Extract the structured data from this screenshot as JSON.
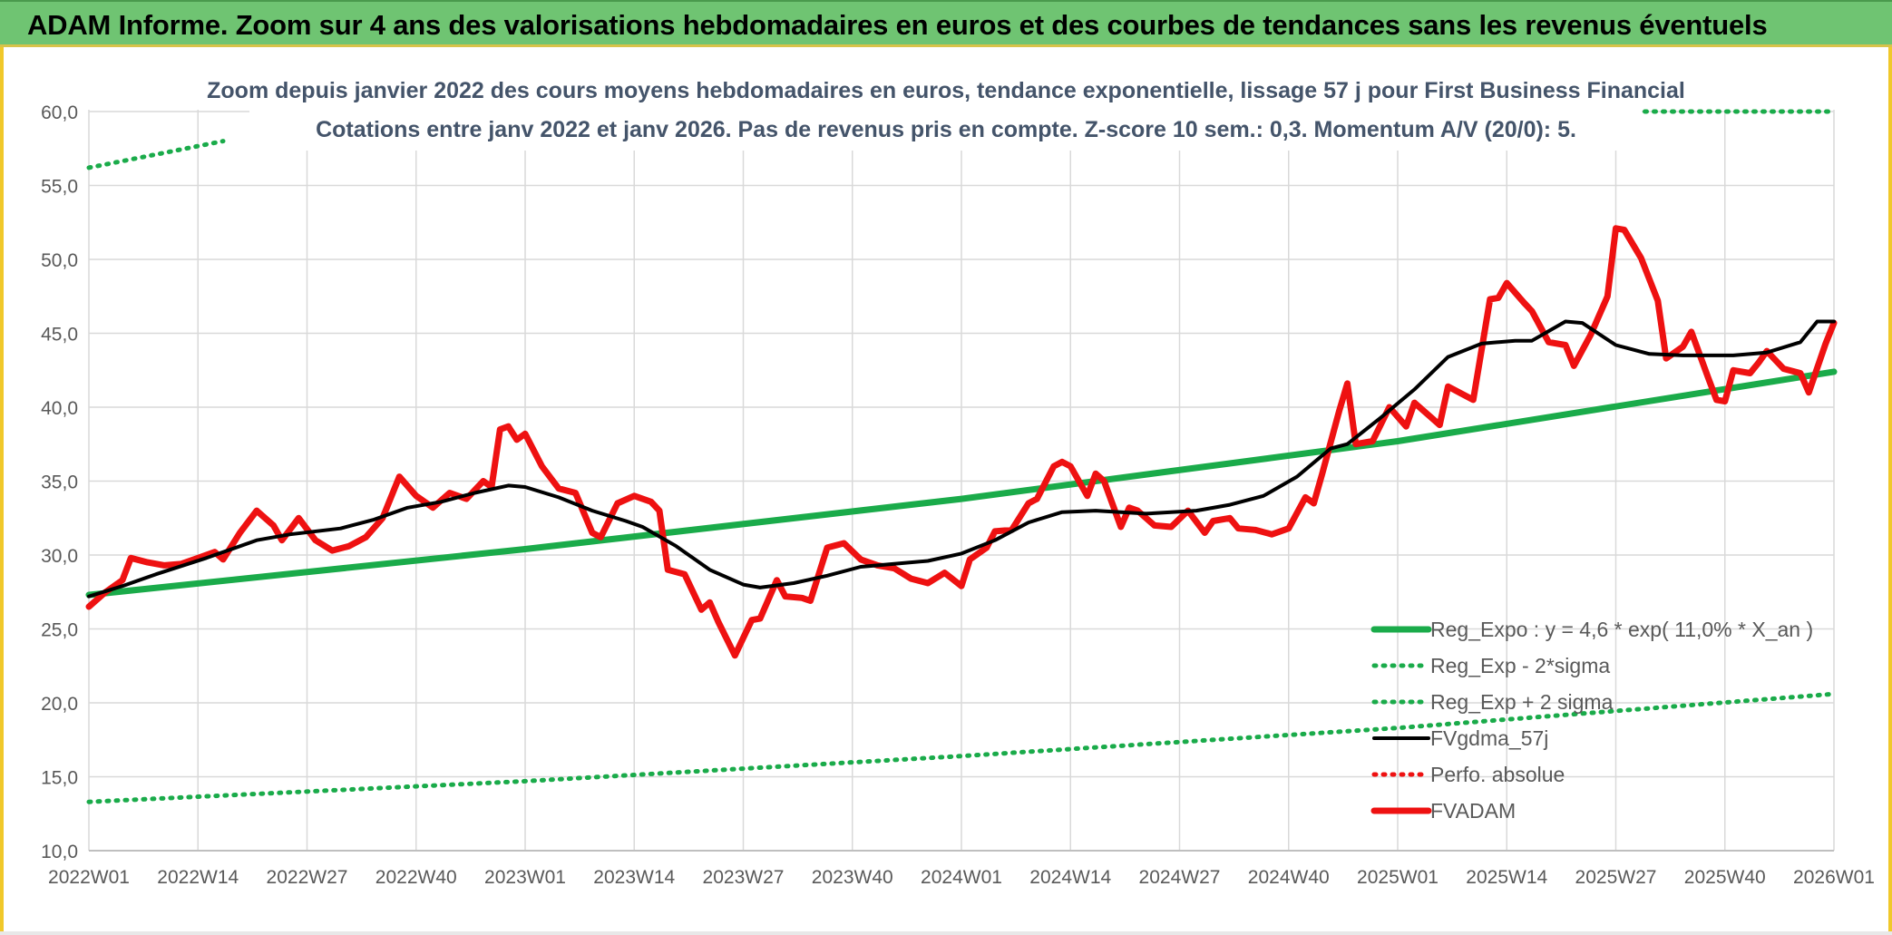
{
  "banner": {
    "title": "ADAM Informe. Zoom sur 4 ans des valorisations hebdomadaires en euros et des courbes de tendances sans les revenus éventuels"
  },
  "colors": {
    "banner": "#6fc472",
    "trend": "#1aab4a",
    "sma": "#000000",
    "price": "#ee1111",
    "grid": "#d9d9d9",
    "axis_text": "#595959",
    "title_text": "#44546a"
  },
  "chart_data": {
    "type": "line",
    "title": "Zoom depuis janvier 2022 des cours moyens hebdomadaires en euros, tendance exponentielle, lissage 57 j pour First Business Financial",
    "subtitle": "Cotations entre janv 2022 et janv 2026. Pas de revenus pris en compte. Z-score 10 sem.: 0,3. Momentum A/V (20/0): 5.",
    "x_tick_labels": [
      "2022W01",
      "2022W14",
      "2022W27",
      "2022W40",
      "2023W01",
      "2023W14",
      "2023W27",
      "2023W40",
      "2024W01",
      "2024W14",
      "2024W27",
      "2024W40",
      "2025W01",
      "2025W14",
      "2025W27",
      "2025W40",
      "2026W01"
    ],
    "x_range": [
      0,
      208
    ],
    "x_tick_step": 13,
    "y_range": [
      10,
      60
    ],
    "y_ticks": [
      "10,0",
      "15,0",
      "20,0",
      "25,0",
      "30,0",
      "35,0",
      "40,0",
      "45,0",
      "50,0",
      "55,0",
      "60,0"
    ],
    "grid": true,
    "legend_position": "bottom-right",
    "series": [
      {
        "name": "Reg_Expo : y = 4,6 * exp( 11,0% *  X_an )",
        "style": "solid-thick",
        "color": "#1aab4a",
        "points": [
          [
            0,
            27.3
          ],
          [
            52,
            30.4
          ],
          [
            104,
            33.8
          ],
          [
            156,
            37.7
          ],
          [
            208,
            42.4
          ]
        ]
      },
      {
        "name": "Reg_Exp - 2*sigma",
        "style": "dotted",
        "color": "#1aab4a",
        "points": [
          [
            0,
            13.3
          ],
          [
            52,
            14.7
          ],
          [
            104,
            16.4
          ],
          [
            156,
            18.3
          ],
          [
            208,
            20.6
          ]
        ]
      },
      {
        "name": "Reg_Exp + 2 sigma",
        "style": "dotted",
        "color": "#1aab4a",
        "points": [
          [
            0,
            56.2
          ],
          [
            8,
            57.1
          ],
          [
            16,
            58.0
          ]
        ],
        "points_right": [
          [
            166,
            60.0
          ],
          [
            208,
            60.0
          ]
        ]
      },
      {
        "name": "FVgdma_57j",
        "style": "solid",
        "color": "#000000",
        "points": [
          [
            0,
            27.2
          ],
          [
            4,
            27.9
          ],
          [
            8,
            28.7
          ],
          [
            14,
            29.8
          ],
          [
            20,
            31.0
          ],
          [
            24,
            31.4
          ],
          [
            30,
            31.8
          ],
          [
            34,
            32.4
          ],
          [
            38,
            33.2
          ],
          [
            42,
            33.6
          ],
          [
            46,
            34.2
          ],
          [
            50,
            34.7
          ],
          [
            52,
            34.6
          ],
          [
            56,
            33.9
          ],
          [
            60,
            33.0
          ],
          [
            64,
            32.3
          ],
          [
            66,
            31.9
          ],
          [
            70,
            30.6
          ],
          [
            74,
            29.0
          ],
          [
            78,
            28.0
          ],
          [
            80,
            27.8
          ],
          [
            84,
            28.1
          ],
          [
            88,
            28.6
          ],
          [
            92,
            29.2
          ],
          [
            96,
            29.4
          ],
          [
            100,
            29.6
          ],
          [
            104,
            30.1
          ],
          [
            108,
            31.0
          ],
          [
            112,
            32.2
          ],
          [
            116,
            32.9
          ],
          [
            120,
            33.0
          ],
          [
            126,
            32.8
          ],
          [
            132,
            33.0
          ],
          [
            136,
            33.4
          ],
          [
            140,
            34.0
          ],
          [
            144,
            35.3
          ],
          [
            148,
            37.2
          ],
          [
            150,
            37.5
          ],
          [
            154,
            39.3
          ],
          [
            158,
            41.2
          ],
          [
            162,
            43.4
          ],
          [
            166,
            44.3
          ],
          [
            170,
            44.5
          ],
          [
            172,
            44.5
          ],
          [
            176,
            45.8
          ],
          [
            178,
            45.7
          ],
          [
            182,
            44.2
          ],
          [
            186,
            43.6
          ],
          [
            190,
            43.5
          ],
          [
            196,
            43.5
          ],
          [
            200,
            43.7
          ],
          [
            204,
            44.4
          ],
          [
            206,
            45.8
          ],
          [
            208,
            45.8
          ]
        ]
      },
      {
        "name": "Perfo. absolue",
        "style": "dotted",
        "color": "#ee1111",
        "points": []
      },
      {
        "name": "FVADAM",
        "style": "solid-thick",
        "color": "#ee1111",
        "points": [
          [
            0,
            26.5
          ],
          [
            2,
            27.5
          ],
          [
            4,
            28.3
          ],
          [
            5,
            29.8
          ],
          [
            7,
            29.5
          ],
          [
            9,
            29.3
          ],
          [
            11,
            29.4
          ],
          [
            13,
            29.8
          ],
          [
            15,
            30.2
          ],
          [
            16,
            29.7
          ],
          [
            18,
            31.5
          ],
          [
            20,
            33.0
          ],
          [
            22,
            32.0
          ],
          [
            23,
            31.0
          ],
          [
            25,
            32.5
          ],
          [
            27,
            31.0
          ],
          [
            29,
            30.3
          ],
          [
            31,
            30.6
          ],
          [
            33,
            31.2
          ],
          [
            35,
            32.5
          ],
          [
            37,
            35.3
          ],
          [
            39,
            34.0
          ],
          [
            41,
            33.2
          ],
          [
            43,
            34.2
          ],
          [
            45,
            33.8
          ],
          [
            47,
            35.0
          ],
          [
            48,
            34.6
          ],
          [
            49,
            38.5
          ],
          [
            50,
            38.7
          ],
          [
            51,
            37.8
          ],
          [
            52,
            38.2
          ],
          [
            54,
            36.0
          ],
          [
            56,
            34.5
          ],
          [
            58,
            34.2
          ],
          [
            60,
            31.5
          ],
          [
            61,
            31.2
          ],
          [
            63,
            33.5
          ],
          [
            65,
            34.0
          ],
          [
            67,
            33.6
          ],
          [
            68,
            33.0
          ],
          [
            69,
            29.0
          ],
          [
            71,
            28.7
          ],
          [
            73,
            26.3
          ],
          [
            74,
            26.8
          ],
          [
            75,
            25.5
          ],
          [
            77,
            23.2
          ],
          [
            79,
            25.6
          ],
          [
            80,
            25.7
          ],
          [
            82,
            28.3
          ],
          [
            83,
            27.2
          ],
          [
            85,
            27.1
          ],
          [
            86,
            26.9
          ],
          [
            88,
            30.5
          ],
          [
            90,
            30.8
          ],
          [
            92,
            29.7
          ],
          [
            94,
            29.3
          ],
          [
            96,
            29.1
          ],
          [
            98,
            28.4
          ],
          [
            100,
            28.1
          ],
          [
            102,
            28.8
          ],
          [
            104,
            27.9
          ],
          [
            105,
            29.7
          ],
          [
            107,
            30.5
          ],
          [
            108,
            31.6
          ],
          [
            110,
            31.7
          ],
          [
            112,
            33.5
          ],
          [
            113,
            33.8
          ],
          [
            115,
            36.0
          ],
          [
            116,
            36.3
          ],
          [
            117,
            36.0
          ],
          [
            119,
            34.0
          ],
          [
            120,
            35.5
          ],
          [
            121,
            35.0
          ],
          [
            123,
            31.9
          ],
          [
            124,
            33.2
          ],
          [
            125,
            33.0
          ],
          [
            127,
            32.0
          ],
          [
            129,
            31.9
          ],
          [
            131,
            33.0
          ],
          [
            133,
            31.5
          ],
          [
            134,
            32.3
          ],
          [
            136,
            32.5
          ],
          [
            137,
            31.8
          ],
          [
            139,
            31.7
          ],
          [
            141,
            31.4
          ],
          [
            143,
            31.8
          ],
          [
            145,
            33.9
          ],
          [
            146,
            33.5
          ],
          [
            147,
            35.5
          ],
          [
            149,
            39.7
          ],
          [
            150,
            41.6
          ],
          [
            151,
            37.5
          ],
          [
            153,
            37.7
          ],
          [
            155,
            40.0
          ],
          [
            157,
            38.7
          ],
          [
            158,
            40.3
          ],
          [
            160,
            39.3
          ],
          [
            161,
            38.8
          ],
          [
            162,
            41.4
          ],
          [
            164,
            40.8
          ],
          [
            165,
            40.5
          ],
          [
            167,
            47.3
          ],
          [
            168,
            47.4
          ],
          [
            169,
            48.4
          ],
          [
            171,
            47.1
          ],
          [
            172,
            46.5
          ],
          [
            174,
            44.4
          ],
          [
            176,
            44.2
          ],
          [
            177,
            42.8
          ],
          [
            179,
            44.9
          ],
          [
            181,
            47.5
          ],
          [
            182,
            52.1
          ],
          [
            183,
            52.0
          ],
          [
            185,
            50.1
          ],
          [
            187,
            47.2
          ],
          [
            188,
            43.3
          ],
          [
            190,
            44.1
          ],
          [
            191,
            45.1
          ],
          [
            193,
            42.0
          ],
          [
            194,
            40.5
          ],
          [
            195,
            40.4
          ],
          [
            196,
            42.5
          ],
          [
            198,
            42.3
          ],
          [
            199,
            43.0
          ],
          [
            200,
            43.8
          ],
          [
            202,
            42.6
          ],
          [
            204,
            42.3
          ],
          [
            205,
            41.0
          ],
          [
            207,
            44.3
          ],
          [
            208,
            45.7
          ]
        ]
      }
    ]
  }
}
